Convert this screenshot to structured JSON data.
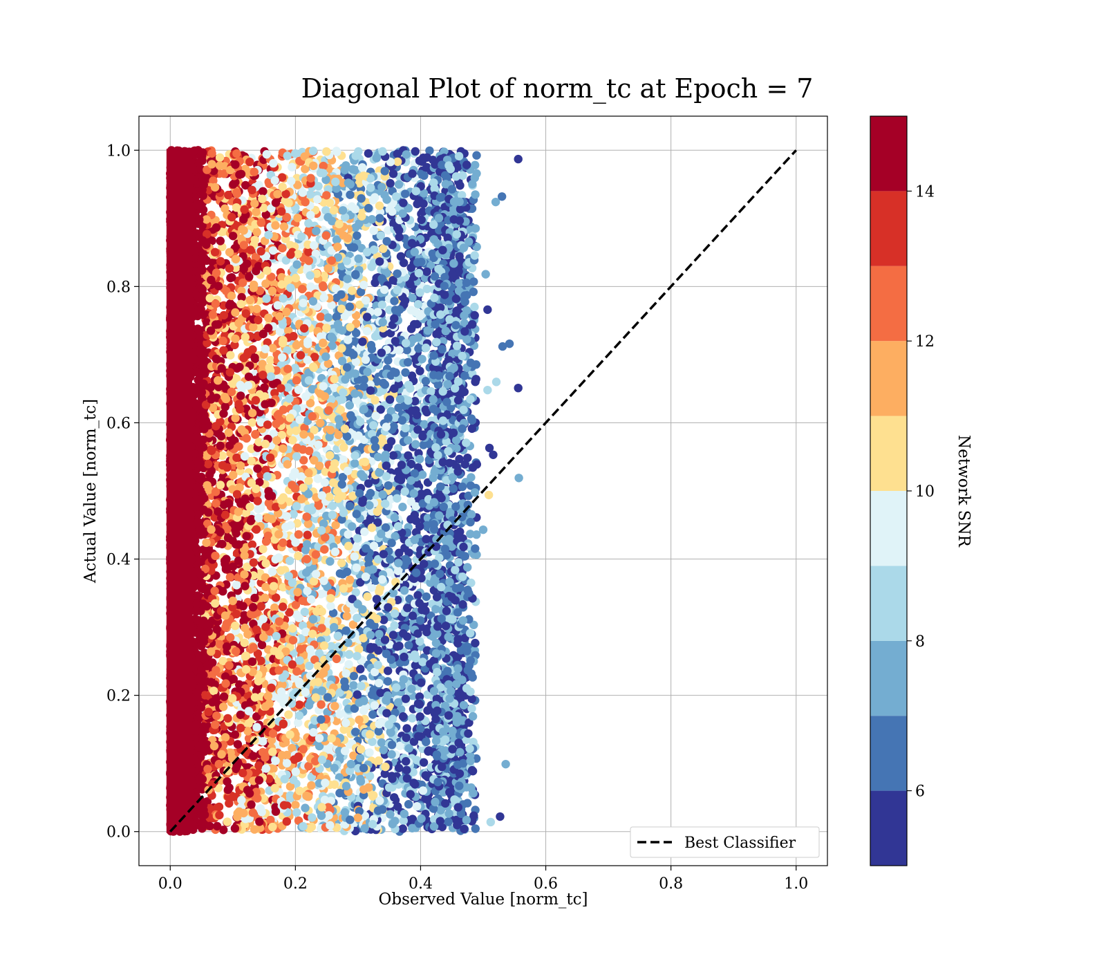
{
  "chart_data": {
    "type": "scatter",
    "title": "Diagonal Plot of norm_tc at Epoch = 7",
    "xlabel": "Observed Value [norm_tc]",
    "ylabel": "Actual Value [norm_tc]",
    "xlim": [
      -0.05,
      1.05
    ],
    "ylim": [
      -0.05,
      1.05
    ],
    "xticks": [
      "0.0",
      "0.2",
      "0.4",
      "0.6",
      "0.8",
      "1.0"
    ],
    "yticks": [
      "0.0",
      "0.2",
      "0.4",
      "0.6",
      "0.8",
      "1.0"
    ],
    "grid": true,
    "legend": {
      "position": "lower-right",
      "entries": [
        "Best Classifier"
      ]
    },
    "reference_line": {
      "name": "Best Classifier",
      "style": "dashed",
      "color": "#000000",
      "x": [
        0.0,
        1.0
      ],
      "y": [
        0.0,
        1.0
      ]
    },
    "colorbar": {
      "label": "Network SNR",
      "range": [
        5,
        15
      ],
      "ticks": [
        "6",
        "8",
        "10",
        "12",
        "14"
      ],
      "tick_values": [
        6,
        8,
        10,
        12,
        14
      ],
      "levels": [
        5,
        6,
        7,
        8,
        9,
        10,
        11,
        12,
        13,
        14,
        15
      ],
      "colors": [
        "#313695",
        "#4575b4",
        "#74add1",
        "#abd9e9",
        "#e0f3f8",
        "#fee090",
        "#fdae61",
        "#f46d43",
        "#d73027",
        "#a50026"
      ]
    },
    "scatter_description_points": [
      {
        "x": 0.556,
        "y": 0.987,
        "snr": 5.5
      },
      {
        "x": 0.53,
        "y": 0.932,
        "snr": 6.5
      },
      {
        "x": 0.52,
        "y": 0.924,
        "snr": 7.5
      },
      {
        "x": 0.507,
        "y": 0.766,
        "snr": 5.5
      },
      {
        "x": 0.542,
        "y": 0.716,
        "snr": 6.5
      },
      {
        "x": 0.531,
        "y": 0.712,
        "snr": 6.5
      },
      {
        "x": 0.556,
        "y": 0.651,
        "snr": 5.5
      },
      {
        "x": 0.521,
        "y": 0.66,
        "snr": 8.5
      },
      {
        "x": 0.507,
        "y": 0.648,
        "snr": 8.5
      },
      {
        "x": 0.51,
        "y": 0.563,
        "snr": 5.5
      },
      {
        "x": 0.516,
        "y": 0.553,
        "snr": 5.5
      },
      {
        "x": 0.557,
        "y": 0.519,
        "snr": 7.5
      },
      {
        "x": 0.509,
        "y": 0.494,
        "snr": 10.5
      },
      {
        "x": 0.5,
        "y": 0.443,
        "snr": 7.5
      },
      {
        "x": 0.536,
        "y": 0.099,
        "snr": 7.5
      },
      {
        "x": 0.527,
        "y": 0.022,
        "snr": 5.5
      },
      {
        "x": 0.512,
        "y": 0.014,
        "snr": 8.5
      },
      {
        "x": 0.504,
        "y": 0.818,
        "snr": 7.5
      }
    ]
  }
}
